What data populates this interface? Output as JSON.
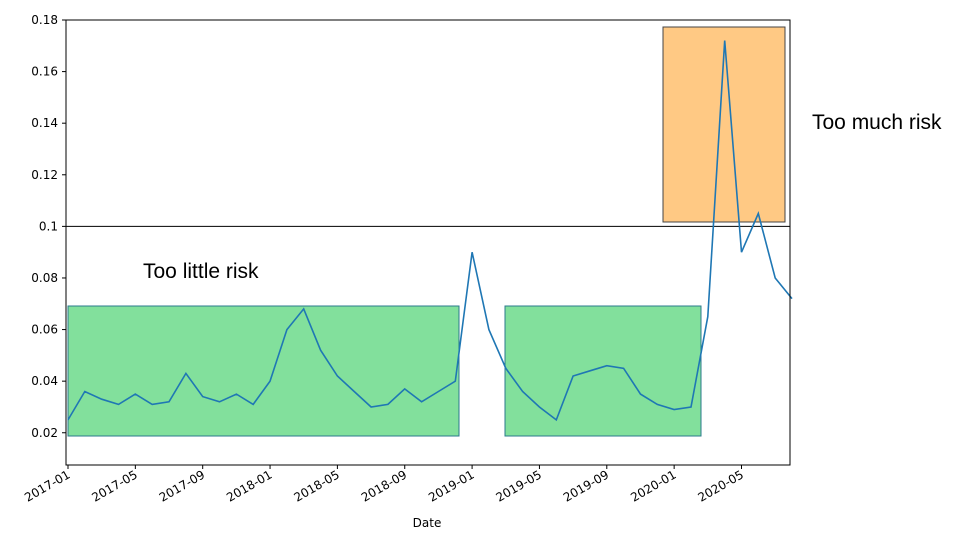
{
  "chart_data": {
    "type": "line",
    "x": [
      "2017-01",
      "2017-02",
      "2017-03",
      "2017-04",
      "2017-05",
      "2017-06",
      "2017-07",
      "2017-08",
      "2017-09",
      "2017-10",
      "2017-11",
      "2017-12",
      "2018-01",
      "2018-02",
      "2018-03",
      "2018-04",
      "2018-05",
      "2018-06",
      "2018-07",
      "2018-08",
      "2018-09",
      "2018-10",
      "2018-11",
      "2018-12",
      "2019-01",
      "2019-02",
      "2019-03",
      "2019-04",
      "2019-05",
      "2019-06",
      "2019-07",
      "2019-08",
      "2019-09",
      "2019-10",
      "2019-11",
      "2019-12",
      "2020-01",
      "2020-02",
      "2020-03",
      "2020-04",
      "2020-05",
      "2020-06",
      "2020-07",
      "2020-08"
    ],
    "series": [
      {
        "color": "#1f77b4",
        "values": [
          0.025,
          0.036,
          0.033,
          0.031,
          0.035,
          0.031,
          0.032,
          0.043,
          0.034,
          0.032,
          0.035,
          0.031,
          0.04,
          0.06,
          0.068,
          0.052,
          0.042,
          0.036,
          0.03,
          0.031,
          0.037,
          0.032,
          0.036,
          0.04,
          0.09,
          0.06,
          0.045,
          0.036,
          0.03,
          0.025,
          0.042,
          0.044,
          0.046,
          0.045,
          0.035,
          0.031,
          0.029,
          0.03,
          0.065,
          0.172,
          0.09,
          0.105,
          0.08,
          0.072
        ]
      }
    ],
    "xlim": [
      "2017-01",
      "2020-08"
    ],
    "xticks": [
      "2017-01",
      "2017-05",
      "2017-09",
      "2018-01",
      "2018-05",
      "2018-09",
      "2019-01",
      "2019-05",
      "2019-09",
      "2020-01",
      "2020-05"
    ],
    "ylim": [
      0.0075,
      0.18
    ],
    "yticks": [
      0.02,
      0.04,
      0.06,
      0.08,
      0.1,
      0.12,
      0.14,
      0.16,
      0.18
    ],
    "hline": 0.1,
    "xlabel": "Date",
    "annotations": [
      "Too little risk",
      "Too much risk"
    ]
  }
}
